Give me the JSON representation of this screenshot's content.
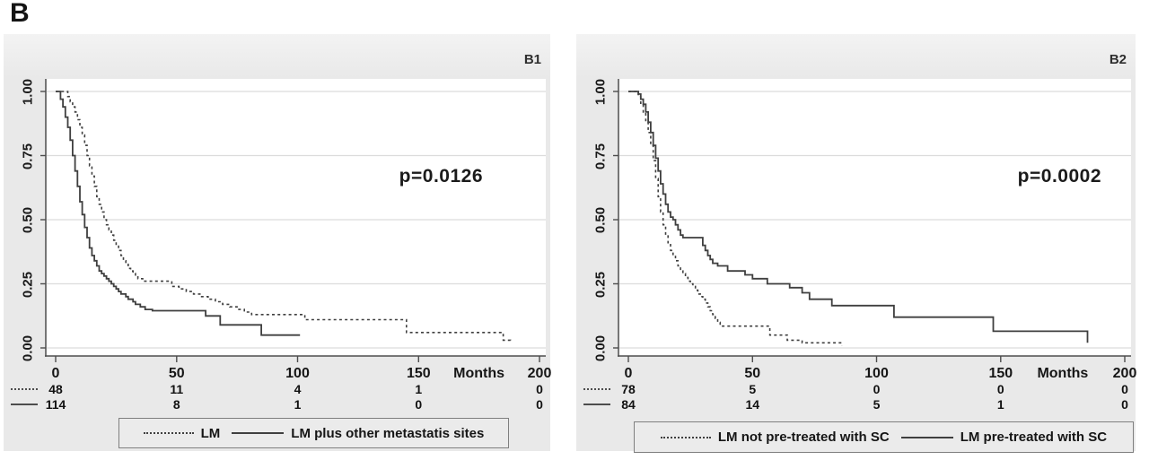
{
  "figure_label": "B",
  "colors": {
    "curve": "#3f3f3f",
    "panel_bg": "#e9e9e9",
    "plot_bg": "#ffffff",
    "gridline": "#dcdcdc",
    "axis": "#4d4d4d"
  },
  "chart_data": [
    {
      "type": "line",
      "subtype": "kaplan-meier-step",
      "panel_label": "B1",
      "p_value": "p=0.0126",
      "x_axis": {
        "label": "Months",
        "ticks": [
          0,
          50,
          100,
          150,
          200
        ],
        "range": [
          0,
          200
        ],
        "grid": false
      },
      "y_axis": {
        "tick_labels": [
          "1.00",
          "0.75",
          "0.50",
          "0.25",
          "0.00"
        ],
        "tick_values": [
          1,
          0.75,
          0.5,
          0.25,
          0
        ],
        "range": [
          0,
          1
        ],
        "grid": true
      },
      "series": [
        {
          "name": "LM",
          "line_style": "dashed",
          "points": [
            [
              0,
              1
            ],
            [
              5,
              0.98
            ],
            [
              6,
              0.96
            ],
            [
              7,
              0.94
            ],
            [
              8,
              0.92
            ],
            [
              9,
              0.89
            ],
            [
              10,
              0.86
            ],
            [
              11,
              0.83
            ],
            [
              12,
              0.79
            ],
            [
              13,
              0.75
            ],
            [
              14,
              0.71
            ],
            [
              15,
              0.67
            ],
            [
              16,
              0.63
            ],
            [
              17,
              0.59
            ],
            [
              18,
              0.56
            ],
            [
              19,
              0.53
            ],
            [
              20,
              0.5
            ],
            [
              21,
              0.48
            ],
            [
              22,
              0.46
            ],
            [
              23,
              0.44
            ],
            [
              24,
              0.42
            ],
            [
              25,
              0.4
            ],
            [
              26,
              0.38
            ],
            [
              27,
              0.36
            ],
            [
              28,
              0.34
            ],
            [
              29,
              0.33
            ],
            [
              30,
              0.31
            ],
            [
              31,
              0.3
            ],
            [
              32,
              0.29
            ],
            [
              33,
              0.28
            ],
            [
              34,
              0.27
            ],
            [
              36,
              0.26
            ],
            [
              48,
              0.24
            ],
            [
              51,
              0.23
            ],
            [
              54,
              0.22
            ],
            [
              57,
              0.21
            ],
            [
              60,
              0.2
            ],
            [
              63,
              0.19
            ],
            [
              66,
              0.18
            ],
            [
              69,
              0.17
            ],
            [
              72,
              0.16
            ],
            [
              75,
              0.15
            ],
            [
              78,
              0.14
            ],
            [
              81,
              0.13
            ],
            [
              103,
              0.11
            ],
            [
              145,
              0.06
            ],
            [
              185,
              0.03
            ],
            [
              188,
              0.02
            ]
          ]
        },
        {
          "name": "LM plus other metastatis sites",
          "line_style": "solid",
          "points": [
            [
              0,
              1
            ],
            [
              2,
              0.97
            ],
            [
              3,
              0.94
            ],
            [
              4,
              0.9
            ],
            [
              5,
              0.86
            ],
            [
              6,
              0.81
            ],
            [
              7,
              0.75
            ],
            [
              8,
              0.69
            ],
            [
              9,
              0.63
            ],
            [
              10,
              0.57
            ],
            [
              11,
              0.52
            ],
            [
              12,
              0.47
            ],
            [
              13,
              0.43
            ],
            [
              14,
              0.39
            ],
            [
              15,
              0.36
            ],
            [
              16,
              0.34
            ],
            [
              17,
              0.32
            ],
            [
              18,
              0.3
            ],
            [
              19,
              0.29
            ],
            [
              20,
              0.28
            ],
            [
              21,
              0.27
            ],
            [
              22,
              0.26
            ],
            [
              23,
              0.25
            ],
            [
              24,
              0.24
            ],
            [
              25,
              0.23
            ],
            [
              26,
              0.22
            ],
            [
              27,
              0.21
            ],
            [
              29,
              0.2
            ],
            [
              30,
              0.19
            ],
            [
              32,
              0.18
            ],
            [
              33,
              0.17
            ],
            [
              35,
              0.16
            ],
            [
              37,
              0.15
            ],
            [
              40,
              0.145
            ],
            [
              62,
              0.125
            ],
            [
              68,
              0.09
            ],
            [
              85,
              0.05
            ],
            [
              101,
              0.05
            ]
          ]
        }
      ],
      "at_risk": [
        {
          "group": "LM",
          "line_style": "dashed",
          "counts": [
            48,
            11,
            4,
            1,
            0
          ]
        },
        {
          "group": "LM plus other metastatis sites",
          "line_style": "solid",
          "counts": [
            114,
            8,
            1,
            0,
            0
          ]
        }
      ],
      "legend": [
        {
          "label": "LM",
          "line_style": "dashed"
        },
        {
          "label": "LM plus other metastatis sites",
          "line_style": "solid"
        }
      ]
    },
    {
      "type": "line",
      "subtype": "kaplan-meier-step",
      "panel_label": "B2",
      "p_value": "p=0.0002",
      "x_axis": {
        "label": "Months",
        "ticks": [
          0,
          50,
          100,
          150,
          200
        ],
        "range": [
          0,
          200
        ],
        "grid": false
      },
      "y_axis": {
        "tick_labels": [
          "1.00",
          "0.75",
          "0.50",
          "0.25",
          "0.00"
        ],
        "tick_values": [
          1,
          0.75,
          0.5,
          0.25,
          0
        ],
        "range": [
          0,
          1
        ],
        "grid": true
      },
      "series": [
        {
          "name": "LM not pre-treated with SC",
          "line_style": "dashed",
          "points": [
            [
              0,
              1
            ],
            [
              4,
              0.98
            ],
            [
              5,
              0.95
            ],
            [
              6,
              0.92
            ],
            [
              7,
              0.88
            ],
            [
              8,
              0.84
            ],
            [
              9,
              0.79
            ],
            [
              10,
              0.73
            ],
            [
              11,
              0.66
            ],
            [
              12,
              0.59
            ],
            [
              13,
              0.53
            ],
            [
              14,
              0.48
            ],
            [
              15,
              0.44
            ],
            [
              16,
              0.41
            ],
            [
              17,
              0.38
            ],
            [
              18,
              0.36
            ],
            [
              19,
              0.34
            ],
            [
              20,
              0.32
            ],
            [
              21,
              0.3
            ],
            [
              22,
              0.29
            ],
            [
              23,
              0.275
            ],
            [
              24,
              0.26
            ],
            [
              25,
              0.25
            ],
            [
              26,
              0.24
            ],
            [
              27,
              0.225
            ],
            [
              28,
              0.21
            ],
            [
              29,
              0.2
            ],
            [
              30,
              0.19
            ],
            [
              31,
              0.175
            ],
            [
              32,
              0.16
            ],
            [
              33,
              0.145
            ],
            [
              34,
              0.13
            ],
            [
              35,
              0.115
            ],
            [
              36,
              0.1
            ],
            [
              37,
              0.085
            ],
            [
              57,
              0.05
            ],
            [
              64,
              0.03
            ],
            [
              70,
              0.02
            ],
            [
              86,
              0.01
            ]
          ]
        },
        {
          "name": "LM pre-treated with SC",
          "line_style": "solid",
          "points": [
            [
              0,
              1
            ],
            [
              4,
              0.99
            ],
            [
              5,
              0.97
            ],
            [
              6,
              0.95
            ],
            [
              7,
              0.92
            ],
            [
              8,
              0.88
            ],
            [
              9,
              0.84
            ],
            [
              10,
              0.79
            ],
            [
              11,
              0.74
            ],
            [
              12,
              0.69
            ],
            [
              13,
              0.64
            ],
            [
              14,
              0.6
            ],
            [
              15,
              0.56
            ],
            [
              16,
              0.53
            ],
            [
              17,
              0.51
            ],
            [
              18,
              0.5
            ],
            [
              19,
              0.48
            ],
            [
              20,
              0.46
            ],
            [
              21,
              0.44
            ],
            [
              22,
              0.43
            ],
            [
              30,
              0.4
            ],
            [
              31,
              0.38
            ],
            [
              32,
              0.36
            ],
            [
              33,
              0.345
            ],
            [
              34,
              0.33
            ],
            [
              36,
              0.32
            ],
            [
              40,
              0.3
            ],
            [
              47,
              0.285
            ],
            [
              50,
              0.27
            ],
            [
              56,
              0.25
            ],
            [
              65,
              0.235
            ],
            [
              70,
              0.215
            ],
            [
              73,
              0.19
            ],
            [
              82,
              0.165
            ],
            [
              107,
              0.12
            ],
            [
              147,
              0.065
            ],
            [
              185,
              0.02
            ]
          ]
        }
      ],
      "at_risk": [
        {
          "group": "LM not pre-treated with SC",
          "line_style": "dashed",
          "counts": [
            78,
            5,
            0,
            0,
            0
          ]
        },
        {
          "group": "LM pre-treated with SC",
          "line_style": "solid",
          "counts": [
            84,
            14,
            5,
            1,
            0
          ]
        }
      ],
      "legend": [
        {
          "label": "LM not pre-treated with SC",
          "line_style": "dashed"
        },
        {
          "label": "LM pre-treated with SC",
          "line_style": "solid"
        }
      ]
    }
  ]
}
